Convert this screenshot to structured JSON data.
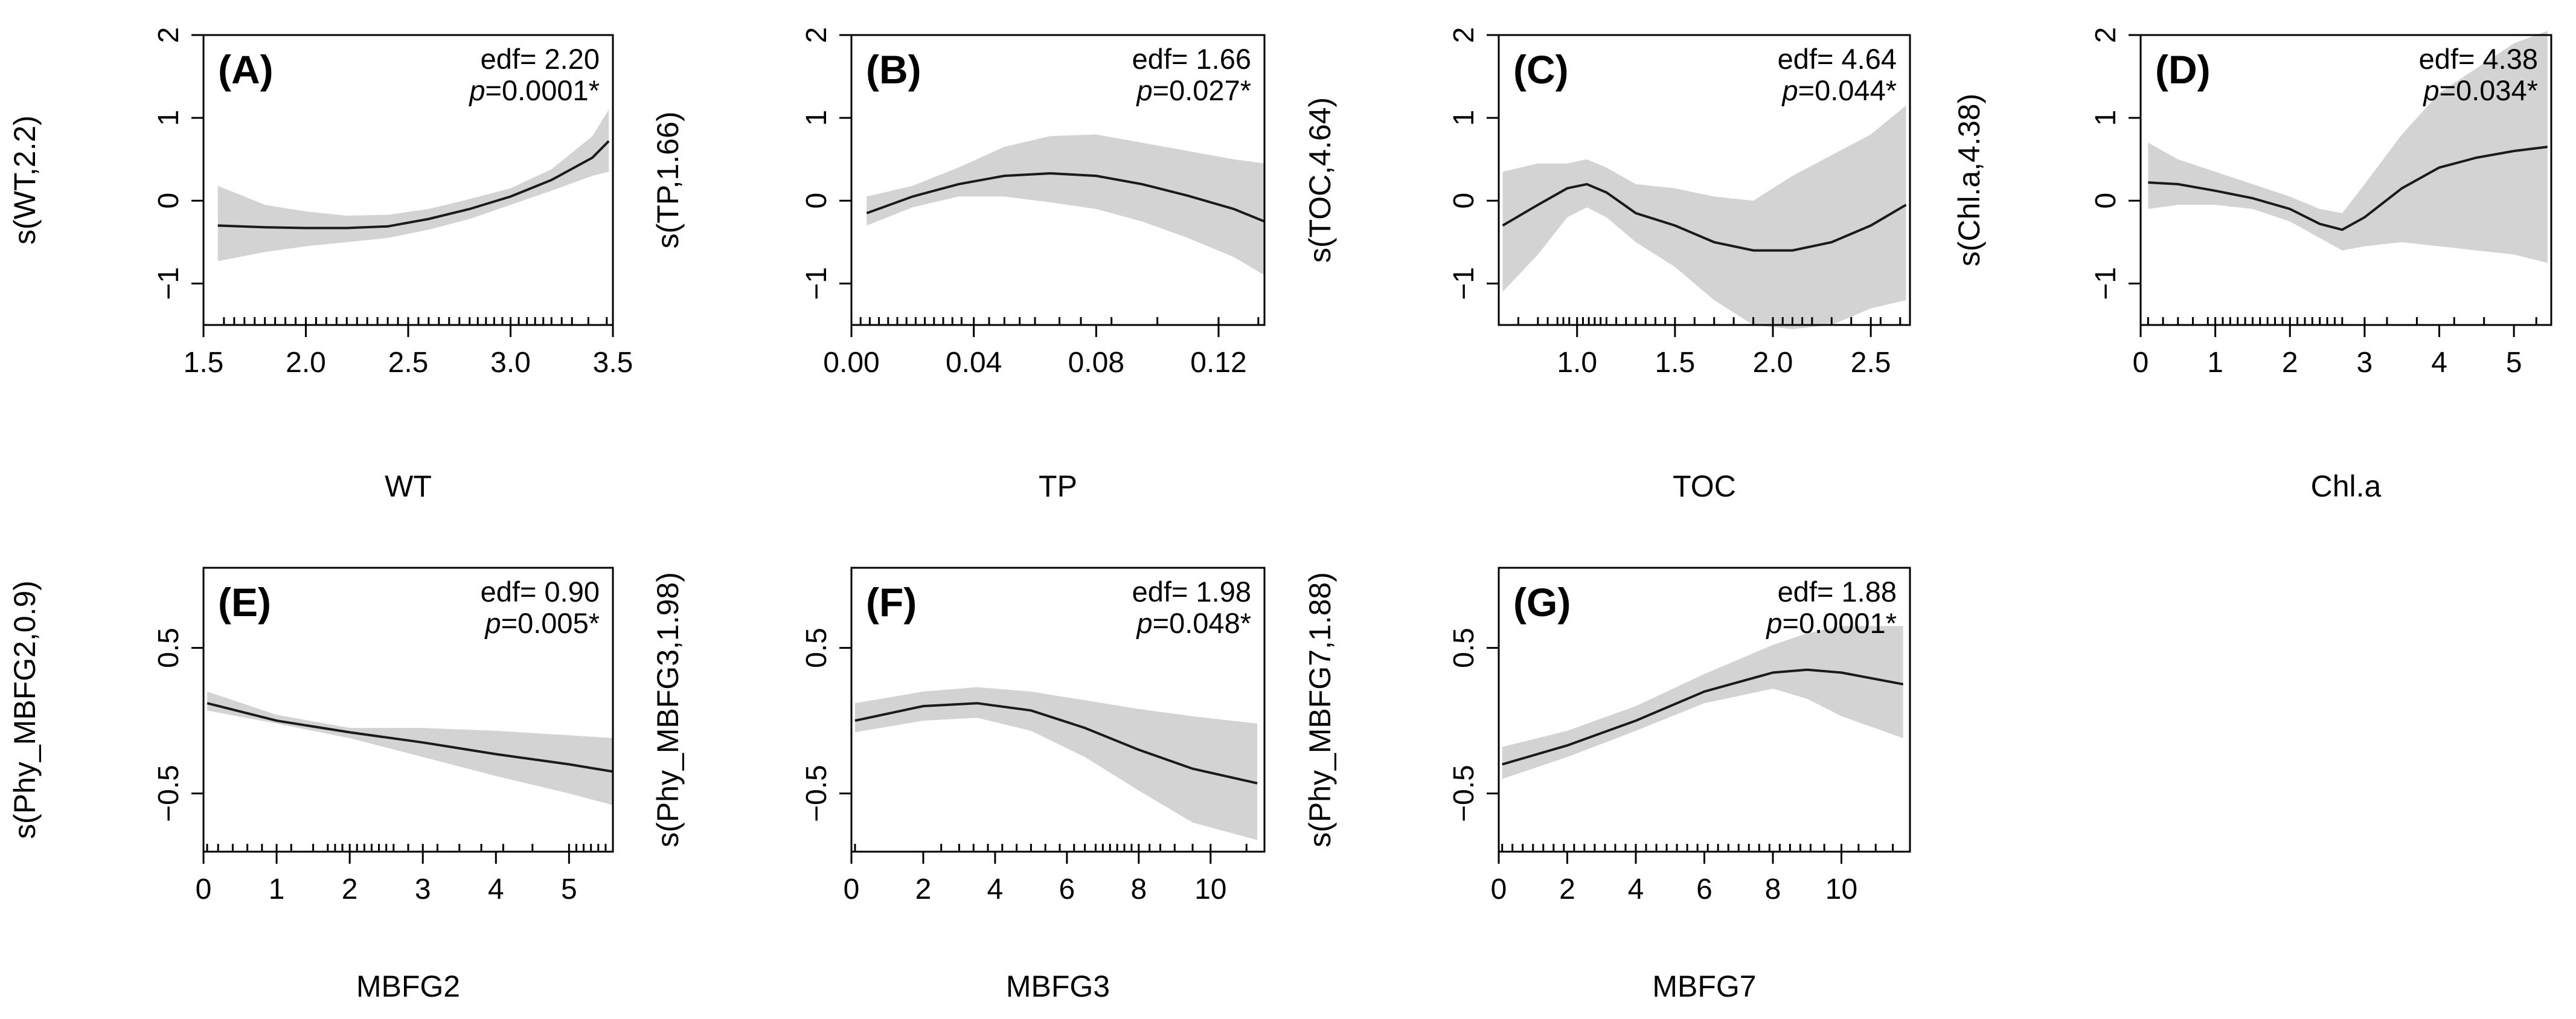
{
  "chart_data": [
    {
      "id": "A",
      "type": "line",
      "panel_label": "(A)",
      "ylabel": "s(WT,2.2)",
      "xlabel": "WT",
      "edf_text": "edf= 2.20",
      "p_value": "0.0001*",
      "xlim": [
        1.5,
        3.5
      ],
      "ylim": [
        -1.5,
        2
      ],
      "xticks": [
        1.5,
        2.0,
        2.5,
        3.0,
        3.5
      ],
      "xtick_labels": [
        "1.5",
        "2.0",
        "2.5",
        "3.0",
        "3.5"
      ],
      "yticks": [
        -1,
        0,
        1,
        2
      ],
      "ytick_labels": [
        "−1",
        "0",
        "1",
        "2"
      ],
      "x": [
        1.57,
        1.8,
        2.0,
        2.2,
        2.4,
        2.6,
        2.8,
        3.0,
        3.2,
        3.4,
        3.48
      ],
      "fit": [
        -0.3,
        -0.32,
        -0.33,
        -0.33,
        -0.31,
        -0.22,
        -0.1,
        0.05,
        0.25,
        0.52,
        0.72
      ],
      "lower": [
        -0.73,
        -0.62,
        -0.55,
        -0.5,
        -0.45,
        -0.35,
        -0.22,
        -0.05,
        0.12,
        0.3,
        0.35
      ],
      "upper": [
        0.18,
        -0.05,
        -0.13,
        -0.18,
        -0.17,
        -0.1,
        0.02,
        0.15,
        0.38,
        0.78,
        1.1
      ],
      "rug": [
        1.6,
        1.65,
        1.7,
        1.75,
        1.8,
        1.85,
        1.9,
        1.95,
        2.0,
        2.05,
        2.1,
        2.15,
        2.2,
        2.25,
        2.3,
        2.35,
        2.4,
        2.45,
        2.5,
        2.55,
        2.6,
        2.65,
        2.7,
        2.75,
        2.8,
        2.84,
        2.88,
        2.92,
        2.96,
        3.0,
        3.04,
        3.08,
        3.12,
        3.16,
        3.2,
        3.25,
        3.3,
        3.38,
        3.47
      ]
    },
    {
      "id": "B",
      "type": "line",
      "panel_label": "(B)",
      "ylabel": "s(TP,1.66)",
      "xlabel": "TP",
      "edf_text": "edf= 1.66",
      "p_value": "0.027*",
      "xlim": [
        0,
        0.135
      ],
      "ylim": [
        -1.5,
        2
      ],
      "xticks": [
        0,
        0.04,
        0.08,
        0.12
      ],
      "xtick_labels": [
        "0.00",
        "0.04",
        "0.08",
        "0.12"
      ],
      "yticks": [
        -1,
        0,
        1,
        2
      ],
      "ytick_labels": [
        "−1",
        "0",
        "1",
        "2"
      ],
      "x": [
        0.005,
        0.02,
        0.035,
        0.05,
        0.065,
        0.08,
        0.095,
        0.11,
        0.125,
        0.135
      ],
      "fit": [
        -0.15,
        0.05,
        0.2,
        0.3,
        0.33,
        0.3,
        0.2,
        0.06,
        -0.1,
        -0.25
      ],
      "lower": [
        -0.3,
        -0.08,
        0.05,
        0.05,
        -0.02,
        -0.1,
        -0.25,
        -0.45,
        -0.68,
        -0.9
      ],
      "upper": [
        0.05,
        0.18,
        0.4,
        0.65,
        0.78,
        0.8,
        0.7,
        0.6,
        0.5,
        0.45
      ],
      "rug": [
        0.003,
        0.006,
        0.009,
        0.012,
        0.015,
        0.018,
        0.021,
        0.024,
        0.027,
        0.03,
        0.033,
        0.036,
        0.04,
        0.045,
        0.05,
        0.055,
        0.06,
        0.068,
        0.075,
        0.085,
        0.1,
        0.12,
        0.133
      ]
    },
    {
      "id": "C",
      "type": "line",
      "panel_label": "(C)",
      "ylabel": "s(TOC,4.64)",
      "xlabel": "TOC",
      "edf_text": "edf= 4.64",
      "p_value": "0.044*",
      "xlim": [
        0.6,
        2.7
      ],
      "ylim": [
        -1.5,
        2
      ],
      "xticks": [
        1.0,
        1.5,
        2.0,
        2.5
      ],
      "xtick_labels": [
        "1.0",
        "1.5",
        "2.0",
        "2.5"
      ],
      "yticks": [
        -1,
        0,
        1,
        2
      ],
      "ytick_labels": [
        "−1",
        "0",
        "1",
        "2"
      ],
      "x": [
        0.62,
        0.8,
        0.95,
        1.05,
        1.15,
        1.3,
        1.5,
        1.7,
        1.9,
        2.1,
        2.3,
        2.5,
        2.68
      ],
      "fit": [
        -0.3,
        -0.05,
        0.15,
        0.2,
        0.1,
        -0.15,
        -0.3,
        -0.5,
        -0.6,
        -0.6,
        -0.5,
        -0.3,
        -0.05
      ],
      "lower": [
        -1.1,
        -0.65,
        -0.2,
        -0.08,
        -0.2,
        -0.5,
        -0.8,
        -1.2,
        -1.5,
        -1.55,
        -1.5,
        -1.3,
        -1.2
      ],
      "upper": [
        0.35,
        0.45,
        0.45,
        0.5,
        0.4,
        0.2,
        0.15,
        0.05,
        0.0,
        0.3,
        0.55,
        0.8,
        1.15
      ],
      "rug": [
        0.7,
        0.8,
        0.85,
        0.9,
        0.93,
        0.96,
        1.0,
        1.03,
        1.06,
        1.09,
        1.12,
        1.15,
        1.2,
        1.25,
        1.3,
        1.35,
        1.4,
        1.45,
        1.5,
        1.6,
        1.7,
        1.8,
        1.9,
        2.0,
        2.05,
        2.1,
        2.15,
        2.2,
        2.3,
        2.4,
        2.5,
        2.55,
        2.65
      ]
    },
    {
      "id": "D",
      "type": "line",
      "panel_label": "(D)",
      "ylabel": "s(Chl.a,4.38)",
      "xlabel": "Chl.a",
      "edf_text": "edf= 4.38",
      "p_value": "0.034*",
      "xlim": [
        0,
        5.5
      ],
      "ylim": [
        -1.5,
        2
      ],
      "xticks": [
        0,
        1,
        2,
        3,
        4,
        5
      ],
      "xtick_labels": [
        "0",
        "1",
        "2",
        "3",
        "4",
        "5"
      ],
      "yticks": [
        -1,
        0,
        1,
        2
      ],
      "ytick_labels": [
        "−1",
        "0",
        "1",
        "2"
      ],
      "x": [
        0.1,
        0.5,
        1.0,
        1.5,
        2.0,
        2.4,
        2.7,
        3.0,
        3.5,
        4.0,
        4.5,
        5.0,
        5.45
      ],
      "fit": [
        0.22,
        0.2,
        0.12,
        0.03,
        -0.1,
        -0.28,
        -0.35,
        -0.2,
        0.15,
        0.4,
        0.52,
        0.6,
        0.65
      ],
      "lower": [
        -0.1,
        -0.05,
        -0.05,
        -0.1,
        -0.25,
        -0.45,
        -0.6,
        -0.55,
        -0.5,
        -0.55,
        -0.6,
        -0.65,
        -0.75
      ],
      "upper": [
        0.7,
        0.5,
        0.35,
        0.2,
        0.05,
        -0.1,
        -0.15,
        0.2,
        0.8,
        1.3,
        1.6,
        1.9,
        2.05
      ],
      "rug": [
        0.1,
        0.3,
        0.5,
        0.7,
        0.9,
        1.0,
        1.1,
        1.2,
        1.3,
        1.4,
        1.5,
        1.6,
        1.7,
        1.8,
        1.9,
        2.0,
        2.1,
        2.2,
        2.3,
        2.4,
        2.5,
        2.6,
        2.7,
        3.0,
        3.3,
        3.7,
        4.2,
        4.6,
        5.3
      ]
    },
    {
      "id": "E",
      "type": "line",
      "panel_label": "(E)",
      "ylabel": "s(Phy_MBFG2,0.9)",
      "xlabel": "MBFG2",
      "edf_text": "edf= 0.90",
      "p_value": "0.005*",
      "xlim": [
        0,
        5.6
      ],
      "ylim": [
        -0.9,
        1.05
      ],
      "xticks": [
        0,
        1,
        2,
        3,
        4,
        5
      ],
      "xtick_labels": [
        "0",
        "1",
        "2",
        "3",
        "4",
        "5"
      ],
      "yticks": [
        -0.5,
        0.5
      ],
      "ytick_labels": [
        "−0.5",
        "0.5"
      ],
      "x": [
        0.05,
        1.0,
        2.0,
        3.0,
        4.0,
        5.0,
        5.6
      ],
      "fit": [
        0.12,
        0.0,
        -0.08,
        -0.15,
        -0.23,
        -0.3,
        -0.35
      ],
      "lower": [
        0.07,
        -0.02,
        -0.12,
        -0.25,
        -0.38,
        -0.5,
        -0.58
      ],
      "upper": [
        0.2,
        0.04,
        -0.05,
        -0.05,
        -0.07,
        -0.1,
        -0.12
      ],
      "rug": [
        0.05,
        0.2,
        0.4,
        0.6,
        0.8,
        1.0,
        1.2,
        1.5,
        1.7,
        1.8,
        1.9,
        2.0,
        2.1,
        2.2,
        2.3,
        2.4,
        2.5,
        2.6,
        2.8,
        3.0,
        3.2,
        3.5,
        3.8,
        4.1,
        4.5,
        5.0,
        5.1,
        5.2,
        5.3,
        5.4,
        5.5
      ]
    },
    {
      "id": "F",
      "type": "line",
      "panel_label": "(F)",
      "ylabel": "s(Phy_MBFG3,1.98)",
      "xlabel": "MBFG3",
      "edf_text": "edf= 1.98",
      "p_value": "0.048*",
      "xlim": [
        0,
        11.5
      ],
      "ylim": [
        -0.9,
        1.05
      ],
      "xticks": [
        0,
        2,
        4,
        6,
        8,
        10
      ],
      "xtick_labels": [
        "0",
        "2",
        "4",
        "6",
        "8",
        "10"
      ],
      "yticks": [
        -0.5,
        0.5
      ],
      "ytick_labels": [
        "−0.5",
        "0.5"
      ],
      "x": [
        0.1,
        2.0,
        3.5,
        5.0,
        6.5,
        8.0,
        9.5,
        11.3
      ],
      "fit": [
        0.0,
        0.1,
        0.12,
        0.07,
        -0.05,
        -0.2,
        -0.33,
        -0.43
      ],
      "lower": [
        -0.08,
        0.0,
        0.02,
        -0.07,
        -0.25,
        -0.48,
        -0.7,
        -0.82
      ],
      "upper": [
        0.12,
        0.2,
        0.23,
        0.2,
        0.14,
        0.08,
        0.03,
        -0.02
      ],
      "rug": [
        0.1,
        2.5,
        3.0,
        3.4,
        3.8,
        4.2,
        4.6,
        5.0,
        5.4,
        5.8,
        6.2,
        6.5,
        6.8,
        7.0,
        7.2,
        7.4,
        7.6,
        7.8,
        8.0,
        8.3,
        8.6,
        9.0,
        9.5,
        10.0,
        11.0
      ]
    },
    {
      "id": "G",
      "type": "line",
      "panel_label": "(G)",
      "ylabel": "s(Phy_MBFG7,1.88)",
      "xlabel": "MBFG7",
      "edf_text": "edf= 1.88",
      "p_value": "0.0001*",
      "xlim": [
        0,
        12
      ],
      "ylim": [
        -0.9,
        1.05
      ],
      "xticks": [
        0,
        2,
        4,
        6,
        8,
        10
      ],
      "xtick_labels": [
        "0",
        "2",
        "4",
        "6",
        "8",
        "10"
      ],
      "yticks": [
        -0.5,
        0.5
      ],
      "ytick_labels": [
        "−0.5",
        "0.5"
      ],
      "x": [
        0.1,
        2.0,
        4.0,
        6.0,
        8.0,
        9.0,
        10.0,
        11.8
      ],
      "fit": [
        -0.3,
        -0.17,
        0.0,
        0.2,
        0.33,
        0.35,
        0.33,
        0.25
      ],
      "lower": [
        -0.4,
        -0.25,
        -0.07,
        0.12,
        0.22,
        0.15,
        0.03,
        -0.12
      ],
      "upper": [
        -0.18,
        -0.07,
        0.1,
        0.32,
        0.52,
        0.6,
        0.65,
        0.65
      ],
      "rug": [
        0.1,
        0.4,
        0.7,
        1.0,
        1.3,
        1.6,
        1.9,
        2.2,
        2.5,
        2.8,
        3.1,
        3.4,
        3.7,
        4.0,
        4.3,
        4.6,
        4.9,
        5.2,
        5.5,
        5.8,
        6.1,
        6.4,
        6.7,
        7.0,
        7.3,
        7.6,
        7.9,
        8.2,
        8.5,
        8.8,
        9.1,
        9.5,
        10.0,
        10.5,
        11.0,
        11.5
      ]
    }
  ]
}
